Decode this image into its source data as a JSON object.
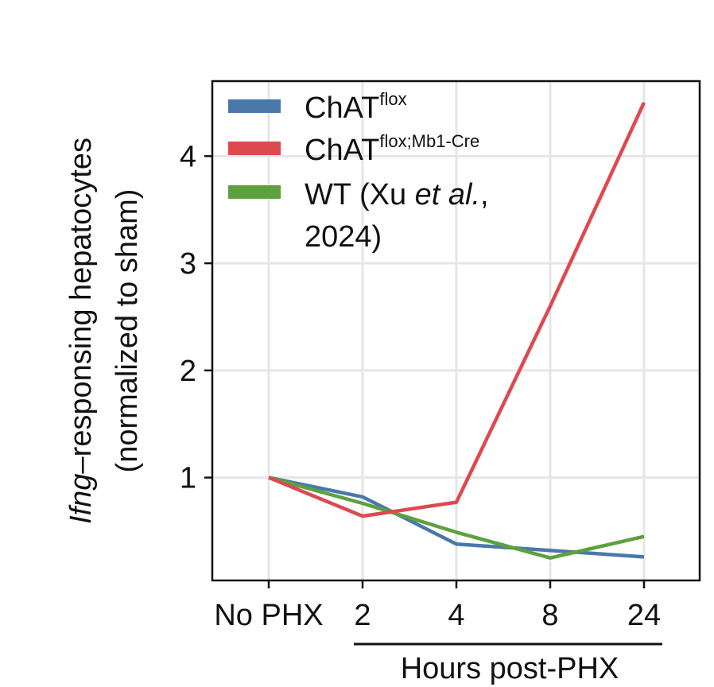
{
  "chart_data": {
    "type": "line",
    "categories": [
      "No PHX",
      "2",
      "4",
      "8",
      "24"
    ],
    "xlabel": "Hours post-PHX",
    "ylabel": {
      "gene": "Ifng",
      "line1_rest": "–responsing hepatocytes",
      "line2": "(normalized to sham)"
    },
    "yticks": [
      1,
      2,
      3,
      4
    ],
    "ylim": [
      0.04,
      4.7
    ],
    "grid": true,
    "legend_position": "top-left",
    "series": [
      {
        "key": "chat-flox",
        "name": "ChATflox",
        "legend": {
          "base": "ChAT",
          "sup": "flox"
        },
        "color": "#4a78ab",
        "values": [
          1.0,
          0.82,
          0.38,
          0.32,
          0.26
        ]
      },
      {
        "key": "chat-flox-mb1-cre",
        "name": "ChATflox;Mb1-Cre",
        "legend": {
          "base": "ChAT",
          "sup": "flox;Mb1-Cre"
        },
        "color": "#dc4a4f",
        "values": [
          1.0,
          0.64,
          0.77,
          2.6,
          4.5
        ]
      },
      {
        "key": "wt-xu-2024",
        "name": "WT (Xu et al., 2024)",
        "legend": {
          "pre": "WT (Xu ",
          "italic": "et al.",
          "post": ",",
          "line2": "2024)"
        },
        "color": "#5da13f",
        "values": [
          1.0,
          0.76,
          0.49,
          0.25,
          0.45
        ]
      }
    ]
  }
}
